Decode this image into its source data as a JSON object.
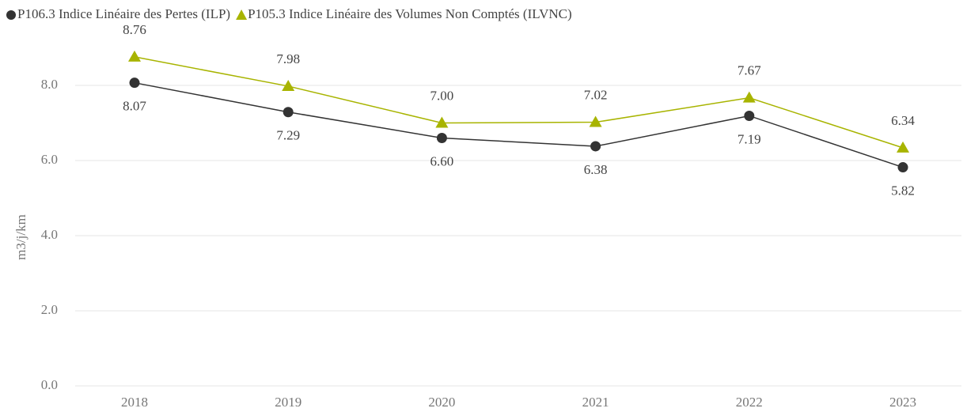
{
  "chart_data": {
    "type": "line",
    "y_label": "m3/j/km",
    "categories": [
      "2018",
      "2019",
      "2020",
      "2021",
      "2022",
      "2023"
    ],
    "series": [
      {
        "name": "P106.3 Indice Linéaire des Pertes (ILP)",
        "color": "#333333",
        "marker": "circle",
        "values": [
          8.07,
          7.29,
          6.6,
          6.38,
          7.19,
          5.82
        ],
        "value_labels": [
          "8.07",
          "7.29",
          "6.60",
          "6.38",
          "7.19",
          "5.82"
        ]
      },
      {
        "name": "P105.3 Indice Linéaire des Volumes Non Comptés (ILVNC)",
        "color": "#a8b400",
        "marker": "triangle",
        "values": [
          8.76,
          7.98,
          7.0,
          7.02,
          7.67,
          6.34
        ],
        "value_labels": [
          "8.76",
          "7.98",
          "7.00",
          "7.02",
          "7.67",
          "6.34"
        ]
      }
    ],
    "ylim": [
      0,
      9
    ],
    "yticks": [
      {
        "value": 0,
        "label": "0.0"
      },
      {
        "value": 2,
        "label": "2.0"
      },
      {
        "value": 4,
        "label": "4.0"
      },
      {
        "value": 6,
        "label": "6.0"
      },
      {
        "value": 8,
        "label": "8.0"
      }
    ],
    "grid": true,
    "legend": "top-left"
  }
}
